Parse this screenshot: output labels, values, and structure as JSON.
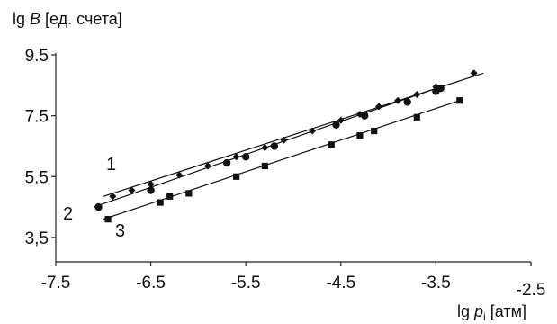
{
  "chart_data": {
    "type": "scatter",
    "ylabel_prefix": "lg ",
    "ylabel_var": "B",
    "ylabel_unit": " [ед. счета]",
    "xlabel_prefix": "lg ",
    "xlabel_var": "p",
    "xlabel_sub": "i",
    "xlabel_unit": " [атм]",
    "xlim": [
      -7.5,
      -2.5
    ],
    "ylim": [
      2.7,
      9.5
    ],
    "x_ticks": [
      "-7.5",
      "-6.5",
      "-5.5",
      "-4.5",
      "-3.5",
      "-2.5"
    ],
    "y_ticks": [
      "9.5",
      "7.5",
      "5.5",
      "3,5"
    ],
    "y_tick_values": [
      9.5,
      7.5,
      5.5,
      3.5
    ],
    "x_tick_values": [
      -7.5,
      -6.5,
      -5.5,
      -4.5,
      -3.5,
      -2.5
    ],
    "grid": false,
    "series": [
      {
        "name": "1",
        "marker": "diamond",
        "line": [
          [
            -7.0,
            4.85
          ],
          [
            -3.0,
            8.9
          ]
        ],
        "points": [
          [
            -6.9,
            4.85
          ],
          [
            -6.7,
            5.05
          ],
          [
            -6.5,
            5.25
          ],
          [
            -6.2,
            5.55
          ],
          [
            -5.9,
            5.85
          ],
          [
            -5.6,
            6.15
          ],
          [
            -5.3,
            6.45
          ],
          [
            -5.1,
            6.7
          ],
          [
            -4.8,
            7.0
          ],
          [
            -4.5,
            7.35
          ],
          [
            -4.3,
            7.55
          ],
          [
            -4.1,
            7.8
          ],
          [
            -3.9,
            8.0
          ],
          [
            -3.7,
            8.2
          ],
          [
            -3.5,
            8.45
          ],
          [
            -3.1,
            8.9
          ]
        ]
      },
      {
        "name": "2",
        "marker": "circle",
        "line": [
          [
            -7.1,
            4.5
          ],
          [
            -3.45,
            8.45
          ]
        ],
        "points": [
          [
            -7.05,
            4.5
          ],
          [
            -6.5,
            5.05
          ],
          [
            -5.7,
            5.95
          ],
          [
            -5.5,
            6.15
          ],
          [
            -5.2,
            6.5
          ],
          [
            -4.55,
            7.2
          ],
          [
            -4.25,
            7.5
          ],
          [
            -3.8,
            7.95
          ],
          [
            -3.5,
            8.3
          ],
          [
            -3.45,
            8.4
          ]
        ]
      },
      {
        "name": "3",
        "marker": "square",
        "line": [
          [
            -7.0,
            4.1
          ],
          [
            -3.25,
            8.0
          ]
        ],
        "points": [
          [
            -6.95,
            4.1
          ],
          [
            -6.4,
            4.65
          ],
          [
            -6.3,
            4.85
          ],
          [
            -6.1,
            4.95
          ],
          [
            -5.6,
            5.5
          ],
          [
            -5.3,
            5.85
          ],
          [
            -4.6,
            6.55
          ],
          [
            -4.3,
            6.85
          ],
          [
            -4.15,
            7.0
          ],
          [
            -3.7,
            7.45
          ],
          [
            -3.25,
            8.0
          ]
        ]
      }
    ],
    "curve_labels": [
      "1",
      "2",
      "3"
    ]
  }
}
